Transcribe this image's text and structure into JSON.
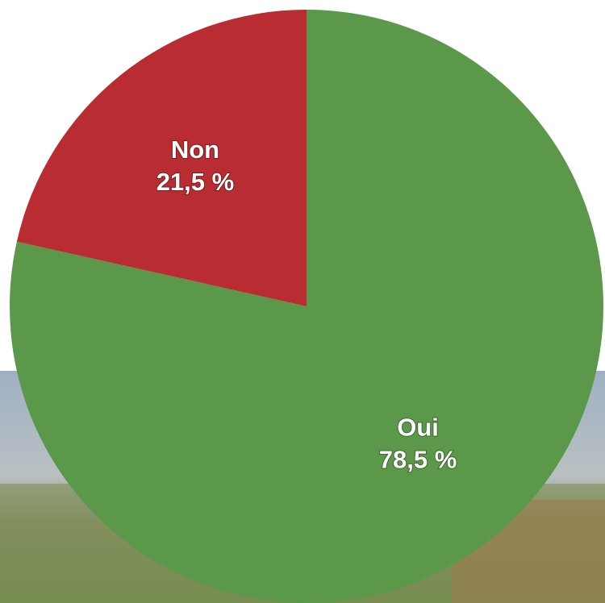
{
  "chart_data": {
    "type": "pie",
    "categories": [
      "Oui",
      "Non"
    ],
    "values": [
      78.5,
      21.5
    ],
    "value_labels": [
      "78,5 %",
      "21,5 %"
    ],
    "colors": [
      "#5c984a",
      "#b82c32"
    ]
  }
}
